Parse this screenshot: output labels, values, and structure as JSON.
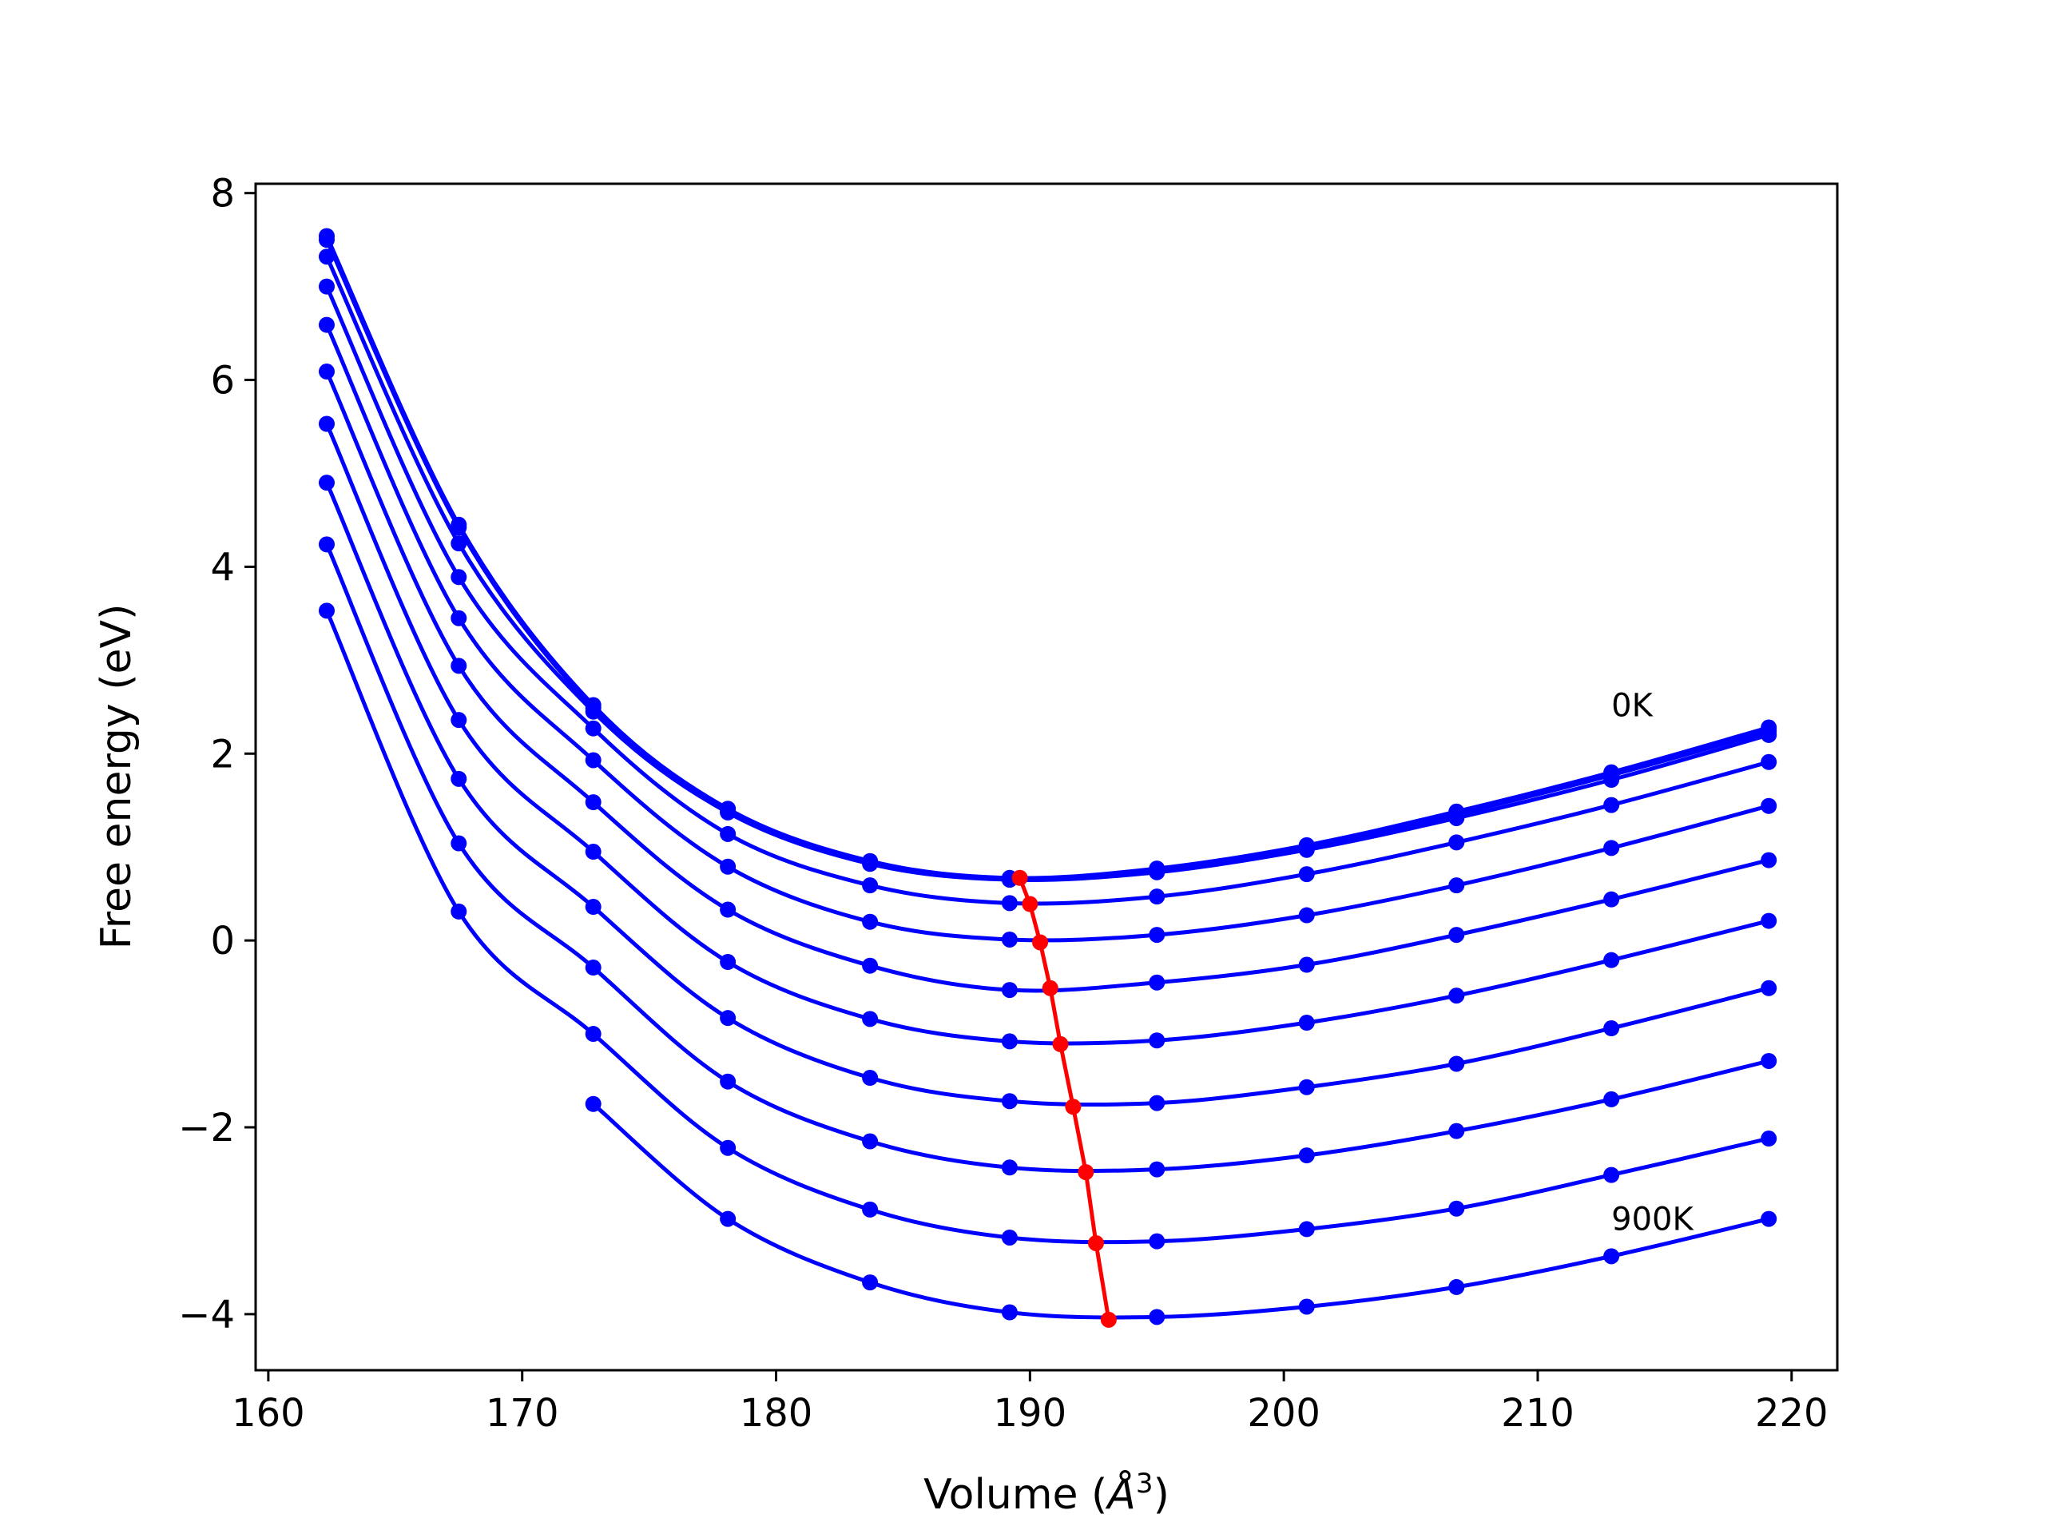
{
  "chart_data": {
    "type": "line",
    "title": "",
    "xlabel": "Volume (Å³)",
    "xlabel_text": "Volume (",
    "xlabel_unit": "Å",
    "xlabel_exp": "3",
    "xlabel_close": ")",
    "ylabel": "Free energy (eV)",
    "xlim": [
      159.5,
      221.8
    ],
    "ylim": [
      -4.6,
      8.1
    ],
    "xticks": [
      160,
      170,
      180,
      190,
      200,
      210,
      220
    ],
    "yticks": [
      -4,
      -2,
      0,
      2,
      4,
      6,
      8
    ],
    "xtick_labels": [
      "160",
      "170",
      "180",
      "190",
      "200",
      "210",
      "220"
    ],
    "ytick_labels": [
      "−4",
      "−2",
      "0",
      "2",
      "4",
      "6",
      "8"
    ],
    "grid": false,
    "curve_color": "#0000ff",
    "min_color": "#ff0000",
    "x": [
      162.3,
      167.5,
      172.8,
      178.1,
      183.7,
      189.2,
      195.0,
      200.9,
      206.8,
      212.9,
      219.1
    ],
    "series": [
      {
        "values": [
          7.54,
          4.45,
          2.52,
          1.41,
          0.85,
          0.67,
          0.77,
          1.02,
          1.38,
          1.8,
          2.28
        ]
      },
      {
        "values": [
          7.5,
          4.42,
          2.49,
          1.38,
          0.83,
          0.66,
          0.74,
          0.99,
          1.35,
          1.77,
          2.24
        ]
      },
      {
        "values": [
          7.32,
          4.25,
          2.45,
          1.37,
          0.82,
          0.65,
          0.73,
          0.97,
          1.31,
          1.72,
          2.2
        ]
      },
      {
        "values": [
          7.0,
          3.89,
          2.27,
          1.14,
          0.59,
          0.4,
          0.47,
          0.71,
          1.05,
          1.45,
          1.91
        ]
      },
      {
        "values": [
          6.59,
          3.45,
          1.93,
          0.79,
          0.2,
          0.01,
          0.06,
          0.27,
          0.59,
          0.99,
          1.44
        ]
      },
      {
        "values": [
          6.09,
          2.94,
          1.48,
          0.33,
          -0.27,
          -0.53,
          -0.45,
          -0.26,
          0.06,
          0.44,
          0.86
        ]
      },
      {
        "values": [
          5.53,
          2.36,
          0.95,
          -0.23,
          -0.84,
          -1.08,
          -1.07,
          -0.88,
          -0.59,
          -0.21,
          0.21
        ]
      },
      {
        "values": [
          4.9,
          1.73,
          0.36,
          -0.83,
          -1.47,
          -1.72,
          -1.74,
          -1.57,
          -1.32,
          -0.94,
          -0.51
        ]
      },
      {
        "values": [
          4.24,
          1.04,
          -0.29,
          -1.51,
          -2.15,
          -2.43,
          -2.45,
          -2.3,
          -2.04,
          -1.7,
          -1.29
        ]
      },
      {
        "values": [
          3.53,
          0.31,
          -1.0,
          -2.22,
          -2.88,
          -3.18,
          -3.22,
          -3.09,
          -2.87,
          -2.51,
          -2.12
        ]
      },
      {
        "values": [
          null,
          null,
          -1.75,
          -2.98,
          -3.66,
          -3.98,
          -4.03,
          -3.92,
          -3.71,
          -3.38,
          -2.98
        ]
      }
    ],
    "minimum_line": {
      "x": [
        189.6,
        190.0,
        190.4,
        190.8,
        191.2,
        191.7,
        192.2,
        192.6,
        193.1
      ],
      "y": [
        0.67,
        0.39,
        -0.02,
        -0.51,
        -1.11,
        -1.78,
        -2.48,
        -3.24,
        -4.06
      ]
    },
    "annotations": [
      {
        "text": "0K",
        "x": 212.9,
        "y": 2.4
      },
      {
        "text": "900K",
        "x": 212.9,
        "y": -3.1
      }
    ]
  }
}
